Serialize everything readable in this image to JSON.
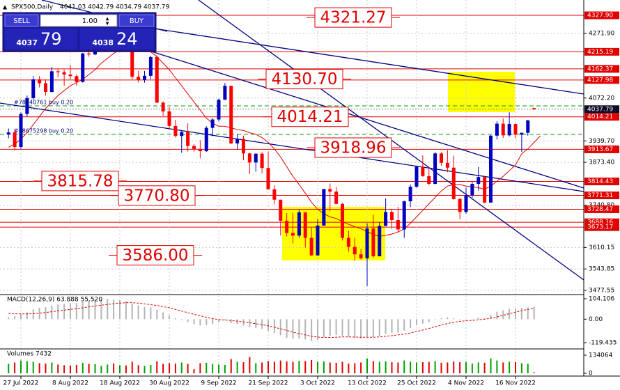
{
  "chart_data": {
    "type": "candlestick",
    "title": "SPX500,Daily",
    "header_values": [
      4041.03,
      4042.79,
      4034.79,
      4037.79
    ],
    "categories": [
      null,
      null,
      "27 Jul 2022",
      null,
      null,
      null,
      null,
      null,
      null,
      null,
      "8 Aug 2022",
      null,
      null,
      null,
      null,
      null,
      null,
      null,
      "18 Aug 2022",
      null,
      null,
      null,
      null,
      null,
      null,
      null,
      "30 Aug 2022",
      null,
      null,
      null,
      null,
      null,
      null,
      null,
      "9 Sep 2022",
      null,
      null,
      null,
      null,
      null,
      null,
      null,
      "21 Sep 2022",
      null,
      null,
      null,
      null,
      null,
      null,
      null,
      "3 Oct 2022",
      null,
      null,
      null,
      null,
      null,
      null,
      null,
      "13 Oct 2022",
      null,
      null,
      null,
      null,
      null,
      null,
      null,
      "25 Oct 2022",
      null,
      null,
      null,
      null,
      null,
      null,
      null,
      "4 Nov 2022",
      null,
      null,
      null,
      null,
      null,
      null,
      null,
      "16 Nov 2022",
      null,
      null,
      null
    ],
    "open": [
      3960,
      3966,
      3921,
      4023,
      4072,
      4130,
      4118,
      4091,
      4155,
      4152,
      4145,
      4140,
      4122,
      4210,
      4207,
      4280,
      4297,
      4305,
      4274,
      4284,
      4228,
      4138,
      4128,
      4141,
      4199,
      4058,
      4031,
      3986,
      3955,
      3967,
      3924,
      3915,
      3908,
      3980,
      4006,
      4067,
      4110,
      3932,
      3946,
      3901,
      3873,
      3900,
      3856,
      3790,
      3758,
      3693,
      3655,
      3647,
      3719,
      3640,
      3586,
      3678,
      3791,
      3783,
      3745,
      3640,
      3612,
      3589,
      3577,
      3669,
      3583,
      3677,
      3720,
      3695,
      3666,
      3753,
      3798,
      3860,
      3831,
      3807,
      3901,
      3872,
      3857,
      3760,
      3720,
      3771,
      3807,
      3828,
      3749,
      3956,
      3993,
      3957,
      3992,
      3959,
      3965,
      4041.03
    ],
    "high": [
      3978,
      3976,
      4028,
      4080,
      4140,
      4140,
      4130,
      4168,
      4162,
      4160,
      4175,
      4145,
      4212,
      4257,
      4282,
      4300,
      4325,
      4302,
      4294,
      4280,
      4225,
      4156,
      4156,
      4203,
      4204,
      4062,
      4044,
      4005,
      3970,
      3994,
      3930,
      3942,
      3985,
      4010,
      4070,
      4119,
      4110,
      3961,
      3956,
      3903,
      3902,
      3905,
      3907,
      3802,
      3758,
      3716,
      3717,
      3727,
      3719,
      3672,
      3698,
      3791,
      3808,
      3797,
      3748,
      3662,
      3640,
      3606,
      3685,
      3712,
      3689,
      3762,
      3728,
      3736,
      3755,
      3805,
      3862,
      3895,
      3859,
      3905,
      3905,
      3911,
      3894,
      3764,
      3796,
      3813,
      3859,
      3832,
      3958,
      4001,
      4009,
      4028,
      3994,
      3960,
      4005,
      4042.79
    ],
    "low": [
      3948,
      3910,
      3915,
      4015,
      4066,
      4105,
      4080,
      4090,
      4136,
      4110,
      4130,
      4110,
      4120,
      4200,
      4205,
      4260,
      4277,
      4254,
      4265,
      4218,
      4130,
      4120,
      4120,
      4131,
      4057,
      4017,
      3975,
      3950,
      3903,
      3907,
      3905,
      3886,
      3906,
      3954,
      4000,
      4067,
      3930,
      3913,
      3880,
      3837,
      3845,
      3839,
      3789,
      3744,
      3647,
      3644,
      3623,
      3640,
      3610,
      3584,
      3584,
      3678,
      3722,
      3744,
      3632,
      3597,
      3570,
      3573,
      3491,
      3579,
      3583,
      3677,
      3668,
      3657,
      3640,
      3735,
      3795,
      3829,
      3803,
      3805,
      3863,
      3843,
      3758,
      3698,
      3715,
      3764,
      3786,
      3748,
      3749,
      3944,
      3949,
      3953,
      3948,
      3906,
      3956,
      4034.79
    ],
    "close": [
      3966,
      3921,
      4023,
      4072,
      4130,
      4118,
      4091,
      4155,
      4152,
      4145,
      4140,
      4122,
      4210,
      4207,
      4280,
      4297,
      4305,
      4274,
      4284,
      4228,
      4138,
      4128,
      4141,
      4199,
      4058,
      4031,
      3986,
      3955,
      3967,
      3924,
      3915,
      3908,
      3980,
      4006,
      4067,
      4110,
      3932,
      3946,
      3901,
      3873,
      3900,
      3856,
      3790,
      3758,
      3693,
      3655,
      3647,
      3719,
      3640,
      3586,
      3678,
      3791,
      3783,
      3745,
      3640,
      3612,
      3589,
      3577,
      3669,
      3583,
      3677,
      3720,
      3695,
      3666,
      3753,
      3798,
      3860,
      3831,
      3807,
      3901,
      3872,
      3857,
      3760,
      3720,
      3771,
      3807,
      3828,
      3749,
      3956,
      3993,
      3957,
      3992,
      3959,
      3965,
      4003,
      4037.79
    ],
    "up_color": "#0000c0",
    "down_color": "#ff0000",
    "ylim": [
      3466.8,
      4375.3
    ],
    "yticks": [
      {
        "value": 4271.9,
        "label": "4271.90"
      },
      {
        "value": 4072.2,
        "label": "4072.20"
      },
      {
        "value": 3939.7,
        "label": "3939.70"
      },
      {
        "value": 3873.4,
        "label": "3873.40"
      },
      {
        "value": 3740.8,
        "label": "3740.80"
      },
      3610.15,
      3543.85,
      3477.55
    ],
    "grid": true,
    "levels": [
      {
        "value": 4327.9,
        "label": "4327.90"
      },
      4215.19,
      4162.37,
      4127.98,
      4014.21,
      3913.67,
      3814.43,
      3771.31,
      3728.47,
      3688.16,
      3673.17
    ],
    "level_color": "#e00000",
    "current_price": 4037.79,
    "annotations": [
      4321.27,
      {
        "value": 4130.7,
        "label": "4130.70"
      },
      4014.21,
      3918.96,
      3815.78,
      {
        "value": 3770.8,
        "label": "3770.80"
      },
      {
        "value": 3586,
        "label": "3586.00"
      }
    ],
    "orders": [
      {
        "name": "#78740761 buy 0.20",
        "value": 4048
      },
      {
        "name": "#78675298 buy 0.20",
        "value": 3960
      }
    ],
    "moving_average": {
      "color": "#e00000",
      "values": [
        3920,
        3930,
        3945,
        3965,
        3990,
        4015,
        4040,
        4060,
        4080,
        4095,
        4110,
        4120,
        4130,
        4145,
        4160,
        4180,
        4195,
        4210,
        4222,
        4230,
        4232,
        4228,
        4222,
        4215,
        4200,
        4180,
        4160,
        4135,
        4110,
        4085,
        4060,
        4035,
        4010,
        3995,
        3985,
        3985,
        3980,
        3975,
        3972,
        3965,
        3960,
        3950,
        3935,
        3915,
        3890,
        3860,
        3830,
        3805,
        3778,
        3750,
        3728,
        3715,
        3705,
        3700,
        3690,
        3682,
        3675,
        3668,
        3660,
        3650,
        3645,
        3648,
        3652,
        3658,
        3668,
        3685,
        3705,
        3725,
        3745,
        3765,
        3785,
        3800,
        3805,
        3805,
        3800,
        3798,
        3795,
        3790,
        3800,
        3815,
        3830,
        3848,
        3865,
        3900,
        3915,
        3935,
        3955
      ]
    },
    "macd": {
      "title": "MACD(12,26,9) 63.888 55.520",
      "ylim": [
        -147.8,
        121.8
      ],
      "yticks": [
        104.106,
        {
          "value": 0,
          "label": "0.00"
        },
        -119.435
      ],
      "main": {
        "color": "#b4b4b4",
        "values": [
          10,
          15,
          25,
          35,
          50,
          58,
          62,
          70,
          75,
          78,
          80,
          82,
          90,
          95,
          100,
          102,
          104,
          100,
          98,
          92,
          80,
          70,
          62,
          60,
          48,
          35,
          20,
          5,
          -5,
          -15,
          -25,
          -32,
          -30,
          -25,
          -15,
          -5,
          -20,
          -25,
          -32,
          -40,
          -45,
          -50,
          -60,
          -70,
          -82,
          -95,
          -100,
          -98,
          -103,
          -110,
          -105,
          -92,
          -85,
          -80,
          -85,
          -90,
          -95,
          -98,
          -90,
          -92,
          -85,
          -75,
          -70,
          -68,
          -58,
          -45,
          -30,
          -22,
          -15,
          -2,
          5,
          10,
          5,
          -2,
          -2,
          2,
          8,
          5,
          22,
          38,
          45,
          52,
          55,
          58,
          60,
          63.888
        ]
      },
      "signal": {
        "color": "#e00000",
        "values": [
          30,
          28,
          27,
          27,
          28,
          31,
          34,
          38,
          42,
          46,
          50,
          54,
          58,
          63,
          67,
          71,
          75,
          79,
          82,
          84,
          84,
          82,
          78,
          74,
          70,
          64,
          58,
          50,
          42,
          33,
          25,
          17,
          10,
          3,
          -2,
          -4,
          -7,
          -10,
          -14,
          -18,
          -23,
          -28,
          -34,
          -41,
          -49,
          -57,
          -66,
          -73,
          -80,
          -87,
          -91,
          -93,
          -93,
          -92,
          -90,
          -90,
          -91,
          -92,
          -92,
          -92,
          -90,
          -87,
          -84,
          -80,
          -76,
          -70,
          -63,
          -55,
          -47,
          -38,
          -30,
          -22,
          -16,
          -11,
          -8,
          -6,
          -3,
          0,
          5,
          12,
          20,
          28,
          36,
          44,
          50,
          55.52
        ]
      }
    },
    "volumes": {
      "title": "Volumes 7432",
      "ylim": [
        -20625,
        175314
      ],
      "yticks": [
        134064,
        0
      ],
      "up_color": "#00a000",
      "down_color": "#e00000",
      "values": [
        70000,
        80000,
        95000,
        90000,
        85000,
        75000,
        72000,
        80000,
        65000,
        60000,
        58000,
        62000,
        78000,
        70000,
        68000,
        55000,
        65000,
        72000,
        60000,
        58000,
        85000,
        60000,
        55000,
        62000,
        88000,
        70000,
        75000,
        72000,
        80000,
        70000,
        30000,
        75000,
        78000,
        70000,
        65000,
        62000,
        105000,
        85000,
        82000,
        120000,
        75000,
        80000,
        90000,
        85000,
        95000,
        88000,
        85000,
        92000,
        90000,
        98000,
        85000,
        88000,
        80000,
        78000,
        85000,
        72000,
        75000,
        80000,
        110000,
        90000,
        85000,
        88000,
        82000,
        80000,
        95000,
        85000,
        80000,
        82000,
        85000,
        90000,
        78000,
        80000,
        88000,
        82000,
        85000,
        72000,
        80000,
        78000,
        110000,
        95000,
        80000,
        85000,
        82000,
        75000,
        70000,
        7432
      ]
    }
  },
  "trade_panel": {
    "sell": "SELL",
    "buy": "BUY",
    "lot": "1.00",
    "bid_big": "4037",
    "bid_small": "79",
    "ask_big": "4038",
    "ask_small": "24"
  }
}
